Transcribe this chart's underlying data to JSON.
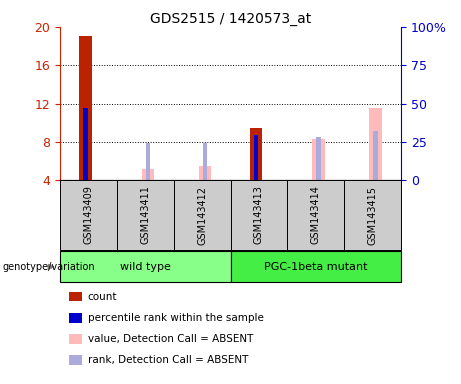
{
  "title": "GDS2515 / 1420573_at",
  "samples": [
    "GSM143409",
    "GSM143411",
    "GSM143412",
    "GSM143413",
    "GSM143414",
    "GSM143415"
  ],
  "ylim_left": [
    4,
    20
  ],
  "ylim_right": [
    0,
    100
  ],
  "yticks_left": [
    4,
    8,
    12,
    16,
    20
  ],
  "yticks_right": [
    0,
    25,
    50,
    75,
    100
  ],
  "yticklabels_right": [
    "0",
    "25",
    "50",
    "75",
    "100%"
  ],
  "count_color": "#bb2200",
  "rank_color": "#0000cc",
  "value_absent_color": "#ffbbbb",
  "rank_absent_color": "#aaaadd",
  "count_values": [
    19.0,
    null,
    null,
    9.5,
    null,
    null
  ],
  "rank_values": [
    11.6,
    null,
    null,
    8.7,
    null,
    null
  ],
  "value_absent": [
    null,
    5.2,
    5.5,
    null,
    8.3,
    11.5
  ],
  "rank_absent": [
    null,
    7.9,
    7.9,
    null,
    8.5,
    9.2
  ],
  "legend_items": [
    {
      "color": "#bb2200",
      "label": "count"
    },
    {
      "color": "#0000cc",
      "label": "percentile rank within the sample"
    },
    {
      "color": "#ffbbbb",
      "label": "value, Detection Call = ABSENT"
    },
    {
      "color": "#aaaadd",
      "label": "rank, Detection Call = ABSENT"
    }
  ],
  "title_color": "#000000",
  "left_axis_color": "#cc2200",
  "right_axis_color": "#0000cc",
  "genotype_label": "genotype/variation",
  "sample_box_color": "#cccccc",
  "wt_color": "#88ff88",
  "pgc_color": "#44ee44"
}
